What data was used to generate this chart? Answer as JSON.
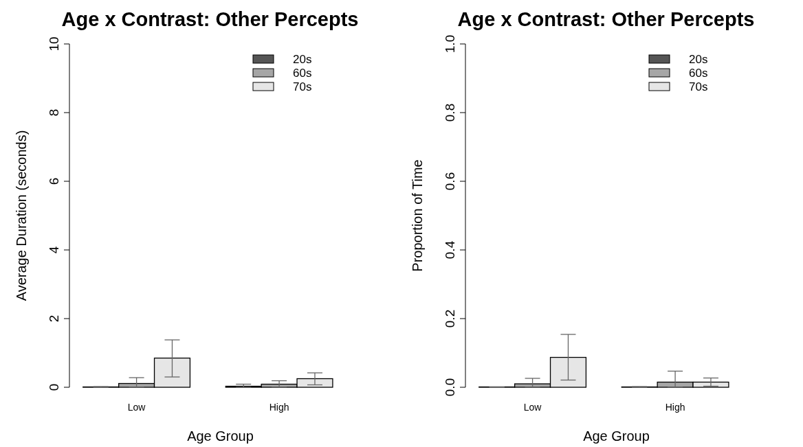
{
  "chart_data": [
    {
      "type": "bar",
      "title": "Age x Contrast: Other Percepts",
      "xlabel": "Age Group",
      "ylabel": "Average Duration (seconds)",
      "categories": [
        "Low",
        "High"
      ],
      "ylim": [
        0,
        10
      ],
      "yticks": [
        0,
        2,
        4,
        6,
        8,
        10
      ],
      "legend": "top right",
      "grid": false,
      "series": [
        {
          "name": "20s",
          "color": "#555555",
          "values": [
            0.01,
            0.03
          ],
          "errors": [
            [
              0,
              0.02
            ],
            [
              0,
              0.09
            ]
          ]
        },
        {
          "name": "60s",
          "color": "#a6a6a6",
          "values": [
            0.11,
            0.09
          ],
          "errors": [
            [
              0,
              0.28
            ],
            [
              0,
              0.19
            ]
          ]
        },
        {
          "name": "70s",
          "color": "#e6e6e6",
          "values": [
            0.85,
            0.25
          ],
          "errors": [
            [
              0.3,
              1.38
            ],
            [
              0.07,
              0.42
            ]
          ]
        }
      ]
    },
    {
      "type": "bar",
      "title": "Age x Contrast: Other Percepts",
      "xlabel": "Age Group",
      "ylabel": "Proportion of Time",
      "categories": [
        "Low",
        "High"
      ],
      "ylim": [
        0,
        1
      ],
      "yticks": [
        {
          "value": 0,
          "label": "0.0"
        },
        0.2,
        0.4,
        0.6,
        0.8,
        {
          "value": 1,
          "label": "1.0"
        }
      ],
      "legend": "top right",
      "grid": false,
      "series": [
        {
          "name": "20s",
          "color": "#555555",
          "values": [
            0.001,
            0.001
          ],
          "errors": [
            [
              0,
              0.001
            ],
            [
              0,
              0.002
            ]
          ]
        },
        {
          "name": "60s",
          "color": "#a6a6a6",
          "values": [
            0.01,
            0.015
          ],
          "errors": [
            [
              0,
              0.026
            ],
            [
              0,
              0.047
            ]
          ]
        },
        {
          "name": "70s",
          "color": "#e6e6e6",
          "values": [
            0.087,
            0.015
          ],
          "errors": [
            [
              0.021,
              0.154
            ],
            [
              0.003,
              0.027
            ]
          ]
        }
      ]
    }
  ]
}
